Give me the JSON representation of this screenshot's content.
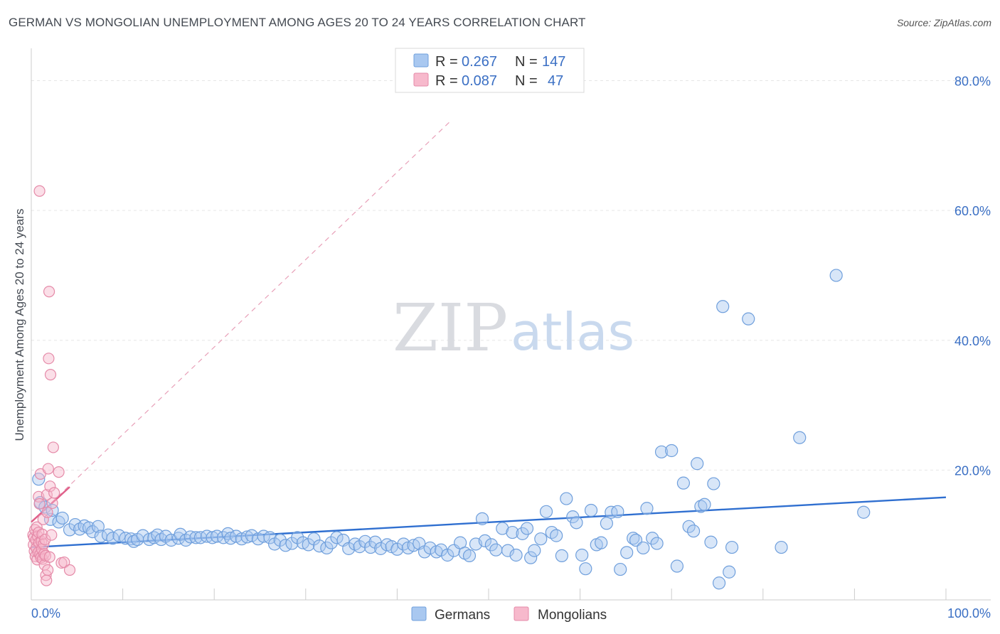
{
  "title": "GERMAN VS MONGOLIAN UNEMPLOYMENT AMONG AGES 20 TO 24 YEARS CORRELATION CHART",
  "source": "Source: ZipAtlas.com",
  "watermark": {
    "zip": "ZIP",
    "atlas": "atlas"
  },
  "legend_top": [
    {
      "r_label": "R =",
      "r_value": "0.267",
      "n_label": "N =",
      "n_value": "147",
      "color": "#a9c8f0",
      "stroke": "#6f9fdc"
    },
    {
      "r_label": "R =",
      "r_value": "0.087",
      "n_label": "N =",
      "n_value": "47",
      "color": "#f7b9cc",
      "stroke": "#e58aa8"
    }
  ],
  "chart_data": {
    "type": "scatter",
    "xlabel": "",
    "ylabel": "Unemployment Among Ages 20 to 24 years",
    "xlim": [
      0,
      100
    ],
    "ylim": [
      0,
      84
    ],
    "x_tick_labels": [
      "0.0%",
      "100.0%"
    ],
    "y_ticks": [
      20,
      40,
      60,
      80
    ],
    "y_tick_labels": [
      "20.0%",
      "40.0%",
      "60.0%",
      "80.0%"
    ],
    "grid": true,
    "legend_bottom": [
      "Germans",
      "Mongolians"
    ],
    "series": [
      {
        "name": "Germans",
        "color": "#a9c8f0",
        "stroke": "#6f9fdc",
        "trend": {
          "x0": 0,
          "y0": 8.1,
          "x1": 100,
          "y1": 15.8,
          "color": "#2f6fd0"
        },
        "points": [
          [
            0.8,
            18.6
          ],
          [
            1.0,
            15.0
          ],
          [
            1.5,
            14.3
          ],
          [
            2.1,
            12.4
          ],
          [
            2.3,
            13.8
          ],
          [
            3.0,
            12.0
          ],
          [
            3.4,
            12.6
          ],
          [
            4.2,
            10.8
          ],
          [
            4.8,
            11.6
          ],
          [
            5.3,
            10.9
          ],
          [
            5.8,
            11.4
          ],
          [
            6.3,
            11.1
          ],
          [
            6.7,
            10.5
          ],
          [
            7.3,
            11.3
          ],
          [
            7.6,
            9.8
          ],
          [
            8.4,
            10.0
          ],
          [
            8.9,
            9.5
          ],
          [
            9.6,
            9.9
          ],
          [
            10.3,
            9.5
          ],
          [
            10.9,
            9.4
          ],
          [
            11.2,
            9.0
          ],
          [
            11.6,
            9.3
          ],
          [
            12.2,
            9.9
          ],
          [
            12.9,
            9.3
          ],
          [
            13.4,
            9.6
          ],
          [
            13.8,
            10.0
          ],
          [
            14.2,
            9.3
          ],
          [
            14.7,
            9.8
          ],
          [
            15.3,
            9.2
          ],
          [
            16.1,
            9.5
          ],
          [
            16.3,
            10.1
          ],
          [
            16.9,
            9.2
          ],
          [
            17.4,
            9.7
          ],
          [
            18.0,
            9.6
          ],
          [
            18.5,
            9.6
          ],
          [
            19.2,
            9.8
          ],
          [
            19.8,
            9.6
          ],
          [
            20.3,
            9.8
          ],
          [
            21.0,
            9.6
          ],
          [
            21.5,
            10.2
          ],
          [
            21.8,
            9.5
          ],
          [
            22.4,
            9.8
          ],
          [
            23.0,
            9.4
          ],
          [
            23.6,
            9.7
          ],
          [
            24.1,
            9.9
          ],
          [
            24.8,
            9.4
          ],
          [
            25.4,
            9.8
          ],
          [
            26.1,
            9.6
          ],
          [
            26.6,
            8.6
          ],
          [
            27.2,
            9.2
          ],
          [
            27.8,
            8.4
          ],
          [
            28.5,
            8.7
          ],
          [
            29.1,
            9.6
          ],
          [
            29.7,
            8.8
          ],
          [
            30.3,
            8.5
          ],
          [
            30.9,
            9.4
          ],
          [
            31.5,
            8.3
          ],
          [
            32.3,
            8.0
          ],
          [
            32.8,
            8.8
          ],
          [
            33.4,
            9.6
          ],
          [
            34.1,
            9.2
          ],
          [
            34.7,
            7.9
          ],
          [
            35.4,
            8.6
          ],
          [
            35.9,
            8.2
          ],
          [
            36.5,
            9.0
          ],
          [
            37.1,
            8.1
          ],
          [
            37.6,
            8.9
          ],
          [
            38.2,
            7.9
          ],
          [
            38.9,
            8.5
          ],
          [
            39.4,
            8.2
          ],
          [
            40.0,
            7.8
          ],
          [
            40.7,
            8.6
          ],
          [
            41.2,
            8.0
          ],
          [
            41.8,
            8.4
          ],
          [
            42.4,
            8.7
          ],
          [
            43.0,
            7.4
          ],
          [
            43.6,
            8.0
          ],
          [
            44.3,
            7.4
          ],
          [
            44.8,
            7.7
          ],
          [
            45.5,
            6.9
          ],
          [
            46.2,
            7.6
          ],
          [
            46.9,
            8.8
          ],
          [
            47.4,
            7.2
          ],
          [
            47.9,
            6.8
          ],
          [
            48.6,
            8.6
          ],
          [
            49.3,
            12.5
          ],
          [
            49.6,
            9.1
          ],
          [
            50.3,
            8.5
          ],
          [
            50.8,
            7.7
          ],
          [
            51.5,
            11.0
          ],
          [
            52.1,
            7.6
          ],
          [
            52.6,
            10.4
          ],
          [
            53.0,
            6.9
          ],
          [
            53.7,
            10.2
          ],
          [
            54.2,
            11.0
          ],
          [
            54.6,
            6.5
          ],
          [
            55.0,
            7.6
          ],
          [
            55.7,
            9.4
          ],
          [
            56.3,
            13.6
          ],
          [
            56.9,
            10.4
          ],
          [
            57.4,
            9.9
          ],
          [
            58.0,
            6.8
          ],
          [
            58.5,
            15.6
          ],
          [
            59.2,
            12.8
          ],
          [
            59.6,
            11.9
          ],
          [
            60.2,
            6.9
          ],
          [
            60.6,
            4.8
          ],
          [
            61.2,
            13.8
          ],
          [
            61.8,
            8.5
          ],
          [
            62.3,
            8.8
          ],
          [
            62.9,
            11.8
          ],
          [
            63.4,
            13.5
          ],
          [
            64.1,
            13.6
          ],
          [
            64.4,
            4.7
          ],
          [
            65.1,
            7.3
          ],
          [
            65.8,
            9.5
          ],
          [
            66.1,
            9.2
          ],
          [
            66.9,
            8.0
          ],
          [
            67.3,
            14.1
          ],
          [
            67.9,
            9.5
          ],
          [
            68.4,
            8.7
          ],
          [
            68.9,
            22.8
          ],
          [
            70.0,
            23.0
          ],
          [
            70.6,
            5.2
          ],
          [
            71.3,
            18.0
          ],
          [
            71.9,
            11.3
          ],
          [
            72.4,
            10.6
          ],
          [
            72.8,
            21.0
          ],
          [
            73.2,
            14.4
          ],
          [
            73.6,
            14.7
          ],
          [
            74.3,
            8.9
          ],
          [
            74.6,
            17.9
          ],
          [
            75.2,
            2.6
          ],
          [
            75.6,
            45.2
          ],
          [
            76.3,
            4.3
          ],
          [
            76.6,
            8.1
          ],
          [
            78.4,
            43.3
          ],
          [
            82.0,
            8.1
          ],
          [
            84.0,
            25.0
          ],
          [
            88.0,
            50.0
          ],
          [
            91.0,
            13.5
          ]
        ]
      },
      {
        "name": "Mongolians",
        "color": "#f7b9cc",
        "stroke": "#e58aa8",
        "trend": {
          "x0": 0,
          "y0": 12.0,
          "x1": 4.2,
          "y1": 17.4,
          "color": "#e0608a",
          "ext_x1": 46.0,
          "ext_y1": 74.0
        },
        "points": [
          [
            0.2,
            10.0
          ],
          [
            0.25,
            8.5
          ],
          [
            0.3,
            9.6
          ],
          [
            0.35,
            7.5
          ],
          [
            0.4,
            10.8
          ],
          [
            0.45,
            6.7
          ],
          [
            0.5,
            9.2
          ],
          [
            0.55,
            8.0
          ],
          [
            0.6,
            11.2
          ],
          [
            0.65,
            6.2
          ],
          [
            0.7,
            9.8
          ],
          [
            0.75,
            7.3
          ],
          [
            0.8,
            10.4
          ],
          [
            0.8,
            15.9
          ],
          [
            0.85,
            8.8
          ],
          [
            0.9,
            14.8
          ],
          [
            0.95,
            7.0
          ],
          [
            1.0,
            19.4
          ],
          [
            1.05,
            6.5
          ],
          [
            1.1,
            9.0
          ],
          [
            1.15,
            7.8
          ],
          [
            1.2,
            10.1
          ],
          [
            1.25,
            6.3
          ],
          [
            1.3,
            12.4
          ],
          [
            1.35,
            8.6
          ],
          [
            1.4,
            7.1
          ],
          [
            1.45,
            5.4
          ],
          [
            1.5,
            9.3
          ],
          [
            1.55,
            6.8
          ],
          [
            1.6,
            3.8
          ],
          [
            1.65,
            3.0
          ],
          [
            1.7,
            16.2
          ],
          [
            1.75,
            13.5
          ],
          [
            1.8,
            4.6
          ],
          [
            1.85,
            20.2
          ],
          [
            1.9,
            37.2
          ],
          [
            1.95,
            47.5
          ],
          [
            2.0,
            6.6
          ],
          [
            2.05,
            17.5
          ],
          [
            2.1,
            34.7
          ],
          [
            2.2,
            10.0
          ],
          [
            2.3,
            14.9
          ],
          [
            2.4,
            23.5
          ],
          [
            2.5,
            16.5
          ],
          [
            3.0,
            19.7
          ],
          [
            3.3,
            5.7
          ],
          [
            3.6,
            5.8
          ],
          [
            4.2,
            4.6
          ],
          [
            0.9,
            63.0
          ]
        ]
      }
    ]
  }
}
